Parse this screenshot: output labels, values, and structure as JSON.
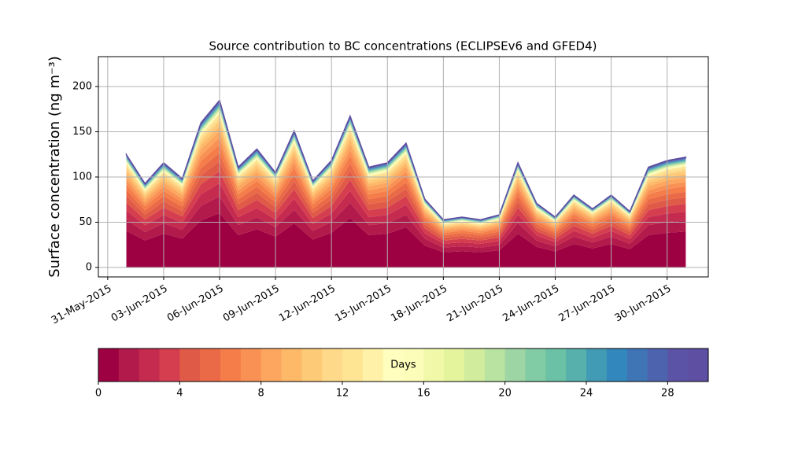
{
  "chart_data": {
    "type": "stackedarea",
    "title": "Source contribution to BC concentrations (ECLIPSEv6 and GFED4)",
    "y_label": "Surface concentration (ng m⁻³)",
    "x": [
      "2015-06-01",
      "2015-06-02",
      "2015-06-03",
      "2015-06-04",
      "2015-06-05",
      "2015-06-06",
      "2015-06-07",
      "2015-06-08",
      "2015-06-09",
      "2015-06-10",
      "2015-06-11",
      "2015-06-12",
      "2015-06-13",
      "2015-06-14",
      "2015-06-15",
      "2015-06-16",
      "2015-06-17",
      "2015-06-18",
      "2015-06-19",
      "2015-06-20",
      "2015-06-21",
      "2015-06-22",
      "2015-06-23",
      "2015-06-24",
      "2015-06-25",
      "2015-06-26",
      "2015-06-27",
      "2015-06-28",
      "2015-06-29",
      "2015-06-30",
      "2015-07-01"
    ],
    "xlim": [
      "2015-05-30T12:00",
      "2015-07-02T05:00"
    ],
    "xticks": [
      {
        "value": "2015-05-31",
        "label": "31-May-2015"
      },
      {
        "value": "2015-06-03",
        "label": "03-Jun-2015"
      },
      {
        "value": "2015-06-06",
        "label": "06-Jun-2015"
      },
      {
        "value": "2015-06-09",
        "label": "09-Jun-2015"
      },
      {
        "value": "2015-06-12",
        "label": "12-Jun-2015"
      },
      {
        "value": "2015-06-15",
        "label": "15-Jun-2015"
      },
      {
        "value": "2015-06-18",
        "label": "18-Jun-2015"
      },
      {
        "value": "2015-06-21",
        "label": "21-Jun-2015"
      },
      {
        "value": "2015-06-24",
        "label": "24-Jun-2015"
      },
      {
        "value": "2015-06-27",
        "label": "27-Jun-2015"
      },
      {
        "value": "2015-06-30",
        "label": "30-Jun-2015"
      }
    ],
    "ylim": [
      -10.4,
      233
    ],
    "yticks": [
      0,
      50,
      100,
      150,
      200
    ],
    "grid": true,
    "series": [
      {
        "color": "#9e0142",
        "values": [
          40.6,
          29.9,
          37.4,
          31.9,
          52.0,
          60.1,
          35.8,
          42.3,
          34.1,
          48.8,
          30.9,
          38.4,
          54.6,
          35.8,
          37.4,
          44.5,
          24.4,
          16.9,
          17.9,
          16.9,
          18.9,
          37.4,
          22.8,
          17.9,
          26.0,
          21.1,
          26.0,
          20.2,
          35.8,
          38.4,
          39.7
        ]
      },
      {
        "color": "#b11a4a",
        "values": [
          12.5,
          9.2,
          11.5,
          9.8,
          16,
          18.5,
          11,
          13,
          10.5,
          15,
          9.5,
          11.8,
          16.8,
          11,
          11.5,
          13.7,
          7.5,
          5.2,
          5.5,
          5.2,
          5.8,
          11.5,
          7,
          5.5,
          8,
          6.5,
          8,
          6.2,
          11,
          11.8,
          12.2
        ]
      },
      {
        "color": "#c52a4f",
        "values": [
          10,
          7.4,
          9.2,
          7.8,
          12.8,
          14.8,
          8.8,
          10.4,
          8.4,
          12,
          7.6,
          9.4,
          13.4,
          8.8,
          9.2,
          11,
          6,
          4.2,
          4.4,
          4.2,
          4.6,
          9.2,
          5.6,
          4.4,
          6.4,
          5.2,
          6.4,
          5,
          8.8,
          9.4,
          9.8
        ]
      },
      {
        "color": "#d53e4f",
        "values": [
          8.8,
          6.4,
          8.1,
          6.9,
          11.2,
          13,
          7.7,
          9.1,
          7.4,
          10.5,
          6.7,
          8.3,
          11.8,
          7.7,
          8.1,
          9.6,
          5.3,
          3.6,
          3.9,
          3.6,
          4.1,
          8.1,
          4.9,
          3.9,
          5.6,
          4.6,
          5.6,
          4.3,
          7.7,
          8.3,
          8.5
        ]
      },
      {
        "color": "#e05a48",
        "values": [
          7.5,
          5.5,
          6.9,
          5.9,
          9.6,
          11.1,
          6.6,
          7.8,
          6.3,
          9,
          5.7,
          7.1,
          10.1,
          6.6,
          6.9,
          8.2,
          4.5,
          3.1,
          3.3,
          3.1,
          3.5,
          6.9,
          4.2,
          3.3,
          4.8,
          3.9,
          4.8,
          3.7,
          6.6,
          7.1,
          7.3
        ]
      },
      {
        "color": "#ea6a47",
        "values": [
          6.3,
          4.6,
          5.8,
          4.9,
          8,
          9.3,
          5.5,
          6.5,
          5.3,
          7.5,
          4.8,
          5.9,
          8.4,
          5.5,
          5.8,
          6.9,
          3.8,
          2.6,
          2.8,
          2.6,
          2.9,
          5.8,
          3.5,
          2.8,
          4,
          3.3,
          4,
          3.1,
          5.5,
          5.9,
          6.1
        ]
      },
      {
        "color": "#f47d4a",
        "values": [
          6.3,
          4.6,
          5.8,
          4.9,
          8,
          9.3,
          5.5,
          6.5,
          5.3,
          7.5,
          4.8,
          5.9,
          8.4,
          5.5,
          5.8,
          6.9,
          3.8,
          2.6,
          2.8,
          2.6,
          2.9,
          5.8,
          3.5,
          2.8,
          4,
          3.3,
          4,
          3.1,
          5.5,
          5.9,
          6.1
        ]
      },
      {
        "color": "#f99155",
        "values": [
          5,
          3.7,
          4.6,
          3.9,
          6.4,
          7.4,
          4.4,
          5.2,
          4.2,
          6,
          3.8,
          4.7,
          6.7,
          4.4,
          4.6,
          5.5,
          3,
          2.1,
          2.2,
          2.1,
          2.3,
          4.6,
          2.8,
          2.2,
          3.2,
          2.6,
          3.2,
          2.5,
          4.4,
          4.7,
          4.9
        ]
      },
      {
        "color": "#fca65f",
        "values": [
          5,
          3.7,
          4.6,
          3.9,
          6.4,
          7.4,
          4.4,
          5.2,
          4.2,
          6,
          3.8,
          4.7,
          6.7,
          4.4,
          4.6,
          5.5,
          3,
          2.1,
          2.2,
          2.1,
          2.3,
          4.6,
          2.8,
          2.2,
          3.2,
          2.6,
          3.2,
          2.5,
          4.4,
          4.7,
          4.9
        ]
      },
      {
        "color": "#fdb868",
        "values": [
          3.8,
          2.8,
          3.5,
          2.9,
          4.8,
          5.6,
          3.3,
          3.9,
          3.2,
          4.5,
          2.9,
          3.5,
          5,
          3.3,
          3.5,
          4.1,
          2.3,
          1.6,
          1.7,
          1.6,
          1.7,
          3.5,
          2.1,
          1.7,
          2.4,
          2,
          2.4,
          1.9,
          3.3,
          3.5,
          3.7
        ]
      },
      {
        "color": "#fdca78",
        "values": [
          3.8,
          2.8,
          3.5,
          2.9,
          4.8,
          5.6,
          3.3,
          3.9,
          3.2,
          4.5,
          2.9,
          3.5,
          5,
          3.3,
          3.5,
          4.1,
          2.3,
          1.6,
          1.7,
          1.6,
          1.7,
          3.5,
          2.1,
          1.7,
          2.4,
          2,
          2.4,
          1.9,
          3.3,
          3.5,
          3.7
        ]
      },
      {
        "color": "#fed98a",
        "values": [
          2.5,
          1.8,
          2.3,
          2,
          3.2,
          3.7,
          2.2,
          2.6,
          2.1,
          3,
          1.9,
          2.4,
          3.4,
          2.2,
          2.3,
          2.7,
          1.5,
          1,
          1.1,
          1,
          1.2,
          2.3,
          1.4,
          1.1,
          1.6,
          1.3,
          1.6,
          1.2,
          2.2,
          2.4,
          2.4
        ]
      },
      {
        "color": "#fee593",
        "values": [
          2.5,
          1.8,
          2.3,
          2,
          3.2,
          3.7,
          2.2,
          2.6,
          2.1,
          3,
          1.9,
          2.4,
          3.4,
          2.2,
          2.3,
          2.7,
          1.5,
          1,
          1.1,
          1,
          1.2,
          2.3,
          1.4,
          1.1,
          1.6,
          1.3,
          1.6,
          1.2,
          2.2,
          2.4,
          2.4
        ]
      },
      {
        "color": "#fff1a8",
        "values": [
          0.6,
          0.5,
          0.6,
          0.5,
          0.8,
          0.9,
          0.6,
          0.7,
          0.5,
          0.8,
          0.5,
          0.6,
          0.8,
          0.6,
          0.6,
          0.7,
          0.4,
          0.3,
          0.3,
          0.3,
          0.3,
          0.6,
          0.4,
          0.3,
          0.4,
          0.3,
          0.4,
          0.3,
          0.6,
          0.6,
          0.6
        ]
      },
      {
        "color": "#fffebe",
        "values": [
          0.6,
          0.5,
          0.6,
          0.5,
          0.8,
          0.9,
          0.6,
          0.7,
          0.5,
          0.8,
          0.5,
          0.6,
          0.8,
          0.6,
          0.6,
          0.7,
          0.4,
          0.3,
          0.3,
          0.3,
          0.3,
          0.6,
          0.4,
          0.3,
          0.4,
          0.3,
          0.4,
          0.3,
          0.6,
          0.6,
          0.6
        ]
      },
      {
        "color": "#fbfdb8",
        "values": [
          0.6,
          0.5,
          0.6,
          0.5,
          0.8,
          0.9,
          0.6,
          0.7,
          0.5,
          0.8,
          0.5,
          0.6,
          0.8,
          0.6,
          0.6,
          0.7,
          0.4,
          0.3,
          0.3,
          0.3,
          0.3,
          0.6,
          0.4,
          0.3,
          0.4,
          0.3,
          0.4,
          0.3,
          0.6,
          0.6,
          0.6
        ]
      },
      {
        "color": "#f1f9a9",
        "values": [
          0.6,
          0.5,
          0.6,
          0.5,
          0.8,
          0.9,
          0.6,
          0.7,
          0.5,
          0.8,
          0.5,
          0.6,
          0.8,
          0.6,
          0.6,
          0.7,
          0.4,
          0.3,
          0.3,
          0.3,
          0.3,
          0.6,
          0.4,
          0.3,
          0.4,
          0.3,
          0.4,
          0.3,
          0.6,
          0.6,
          0.6
        ]
      },
      {
        "color": "#e3f49d",
        "values": [
          0.6,
          0.5,
          0.6,
          0.5,
          0.8,
          0.9,
          0.6,
          0.7,
          0.5,
          0.8,
          0.5,
          0.6,
          0.8,
          0.6,
          0.6,
          0.7,
          0.4,
          0.3,
          0.3,
          0.3,
          0.3,
          0.6,
          0.4,
          0.3,
          0.4,
          0.3,
          0.4,
          0.3,
          0.6,
          0.6,
          0.6
        ]
      },
      {
        "color": "#d0ec9c",
        "values": [
          0.6,
          0.5,
          0.6,
          0.5,
          0.8,
          0.9,
          0.6,
          0.7,
          0.5,
          0.8,
          0.5,
          0.6,
          0.8,
          0.6,
          0.6,
          0.7,
          0.4,
          0.3,
          0.3,
          0.3,
          0.3,
          0.6,
          0.4,
          0.3,
          0.4,
          0.3,
          0.4,
          0.3,
          0.6,
          0.6,
          0.6
        ]
      },
      {
        "color": "#b8e3a0",
        "values": [
          0.6,
          0.5,
          0.6,
          0.5,
          0.8,
          0.9,
          0.6,
          0.7,
          0.5,
          0.8,
          0.5,
          0.6,
          0.8,
          0.6,
          0.6,
          0.7,
          0.4,
          0.3,
          0.3,
          0.3,
          0.3,
          0.6,
          0.4,
          0.3,
          0.4,
          0.3,
          0.4,
          0.3,
          0.6,
          0.6,
          0.6
        ]
      },
      {
        "color": "#9dd6a4",
        "values": [
          0.6,
          0.5,
          0.6,
          0.5,
          0.8,
          0.9,
          0.6,
          0.7,
          0.5,
          0.8,
          0.5,
          0.6,
          0.8,
          0.6,
          0.6,
          0.7,
          0.4,
          0.3,
          0.3,
          0.3,
          0.3,
          0.6,
          0.4,
          0.3,
          0.4,
          0.3,
          0.4,
          0.3,
          0.6,
          0.6,
          0.6
        ]
      },
      {
        "color": "#82cca5",
        "values": [
          0.6,
          0.5,
          0.6,
          0.5,
          0.8,
          0.9,
          0.6,
          0.7,
          0.5,
          0.8,
          0.5,
          0.6,
          0.8,
          0.6,
          0.6,
          0.7,
          0.4,
          0.3,
          0.3,
          0.3,
          0.3,
          0.6,
          0.4,
          0.3,
          0.4,
          0.3,
          0.4,
          0.3,
          0.6,
          0.6,
          0.6
        ]
      },
      {
        "color": "#6bc1a5",
        "values": [
          0.6,
          0.5,
          0.6,
          0.5,
          0.8,
          0.9,
          0.6,
          0.7,
          0.5,
          0.8,
          0.5,
          0.6,
          0.8,
          0.6,
          0.6,
          0.7,
          0.4,
          0.3,
          0.3,
          0.3,
          0.3,
          0.6,
          0.4,
          0.3,
          0.4,
          0.3,
          0.4,
          0.3,
          0.6,
          0.6,
          0.6
        ]
      },
      {
        "color": "#57b0ab",
        "values": [
          0.6,
          0.5,
          0.6,
          0.5,
          0.8,
          0.9,
          0.6,
          0.7,
          0.5,
          0.8,
          0.5,
          0.6,
          0.8,
          0.6,
          0.6,
          0.7,
          0.4,
          0.3,
          0.3,
          0.3,
          0.3,
          0.6,
          0.4,
          0.3,
          0.4,
          0.3,
          0.4,
          0.3,
          0.6,
          0.6,
          0.6
        ]
      },
      {
        "color": "#429bb4",
        "values": [
          0.6,
          0.5,
          0.6,
          0.5,
          0.8,
          0.9,
          0.6,
          0.7,
          0.5,
          0.8,
          0.5,
          0.6,
          0.8,
          0.6,
          0.6,
          0.7,
          0.4,
          0.3,
          0.3,
          0.3,
          0.3,
          0.6,
          0.4,
          0.3,
          0.4,
          0.3,
          0.4,
          0.3,
          0.6,
          0.6,
          0.6
        ]
      },
      {
        "color": "#3288bd",
        "values": [
          0.6,
          0.5,
          0.6,
          0.5,
          0.8,
          0.9,
          0.6,
          0.7,
          0.5,
          0.8,
          0.5,
          0.6,
          0.8,
          0.6,
          0.6,
          0.7,
          0.4,
          0.3,
          0.3,
          0.3,
          0.3,
          0.6,
          0.4,
          0.3,
          0.4,
          0.3,
          0.4,
          0.3,
          0.6,
          0.6,
          0.6
        ]
      },
      {
        "color": "#3f75b5",
        "values": [
          0.6,
          0.5,
          0.6,
          0.5,
          0.8,
          0.9,
          0.6,
          0.7,
          0.5,
          0.8,
          0.5,
          0.6,
          0.8,
          0.6,
          0.6,
          0.7,
          0.4,
          0.3,
          0.3,
          0.3,
          0.3,
          0.6,
          0.4,
          0.3,
          0.4,
          0.3,
          0.4,
          0.3,
          0.6,
          0.6,
          0.6
        ]
      },
      {
        "color": "#4d63ae",
        "values": [
          0.6,
          0.5,
          0.6,
          0.5,
          0.8,
          0.9,
          0.6,
          0.7,
          0.5,
          0.8,
          0.5,
          0.6,
          0.8,
          0.6,
          0.6,
          0.7,
          0.4,
          0.3,
          0.3,
          0.3,
          0.3,
          0.6,
          0.4,
          0.3,
          0.4,
          0.3,
          0.4,
          0.3,
          0.6,
          0.6,
          0.6
        ]
      },
      {
        "color": "#5a53a6",
        "values": [
          0.6,
          0.5,
          0.6,
          0.5,
          0.8,
          0.9,
          0.6,
          0.7,
          0.5,
          0.8,
          0.5,
          0.6,
          0.8,
          0.6,
          0.6,
          0.7,
          0.4,
          0.3,
          0.3,
          0.3,
          0.3,
          0.6,
          0.4,
          0.3,
          0.4,
          0.3,
          0.4,
          0.3,
          0.6,
          0.6,
          0.6
        ]
      },
      {
        "color": "#5e4fa2",
        "values": [
          0.6,
          0.5,
          0.6,
          0.5,
          0.8,
          0.9,
          0.6,
          0.7,
          0.5,
          0.8,
          0.5,
          0.6,
          0.8,
          0.6,
          0.6,
          0.7,
          0.4,
          0.3,
          0.3,
          0.3,
          0.3,
          0.6,
          0.4,
          0.3,
          0.4,
          0.3,
          0.4,
          0.3,
          0.6,
          0.6,
          0.6
        ]
      }
    ],
    "colorbar": {
      "label": "Days",
      "clim": [
        0,
        30
      ],
      "ticks": [
        0,
        4,
        8,
        12,
        16,
        20,
        24,
        28
      ]
    }
  }
}
